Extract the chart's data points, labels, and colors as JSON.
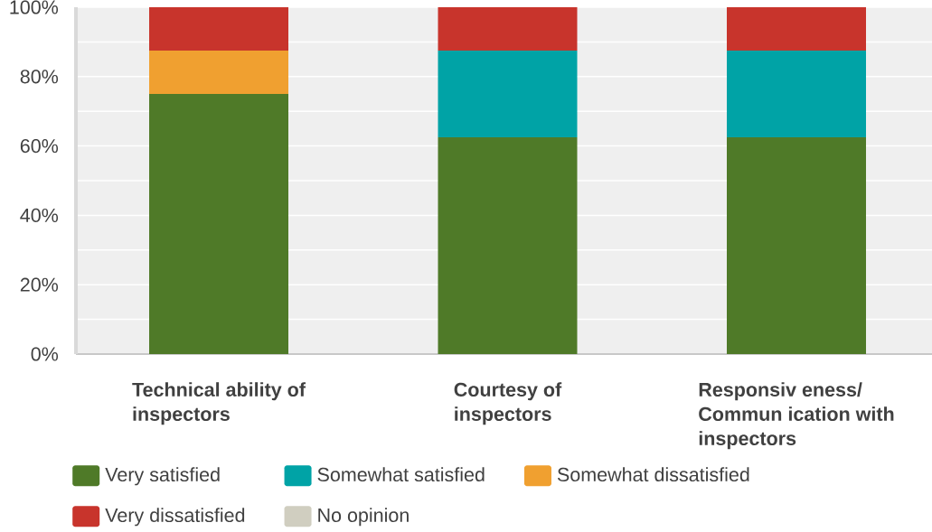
{
  "chart_data": {
    "type": "bar",
    "stacked": true,
    "categories": [
      "Technical ability of inspectors",
      "Courtesy of inspectors",
      "Responsiv eness/ Commun ication with inspectors"
    ],
    "series": [
      {
        "name": "Very satisfied",
        "color": "#4f7a28",
        "values": [
          75,
          62.5,
          62.5
        ]
      },
      {
        "name": "Somewhat satisfied",
        "color": "#00a3a6",
        "values": [
          0,
          25,
          25
        ]
      },
      {
        "name": "Somewhat dissatisfied",
        "color": "#f0a030",
        "values": [
          12.5,
          0,
          0
        ]
      },
      {
        "name": "Very dissatisfied",
        "color": "#c8342c",
        "values": [
          12.5,
          12.5,
          12.5
        ]
      },
      {
        "name": "No opinion",
        "color": "#d0cec0",
        "values": [
          0,
          0,
          0
        ]
      }
    ],
    "ylim": [
      0,
      100
    ],
    "yticks": [
      {
        "value": 0,
        "label": "0%"
      },
      {
        "value": 10,
        "label": null
      },
      {
        "value": 20,
        "label": "20%"
      },
      {
        "value": 30,
        "label": null
      },
      {
        "value": 40,
        "label": "40%"
      },
      {
        "value": 50,
        "label": null
      },
      {
        "value": 60,
        "label": "60%"
      },
      {
        "value": 70,
        "label": null
      },
      {
        "value": 80,
        "label": "80%"
      },
      {
        "value": 90,
        "label": null
      },
      {
        "value": 100,
        "label": "100%"
      }
    ],
    "grid": "y",
    "legend": "bottom"
  }
}
